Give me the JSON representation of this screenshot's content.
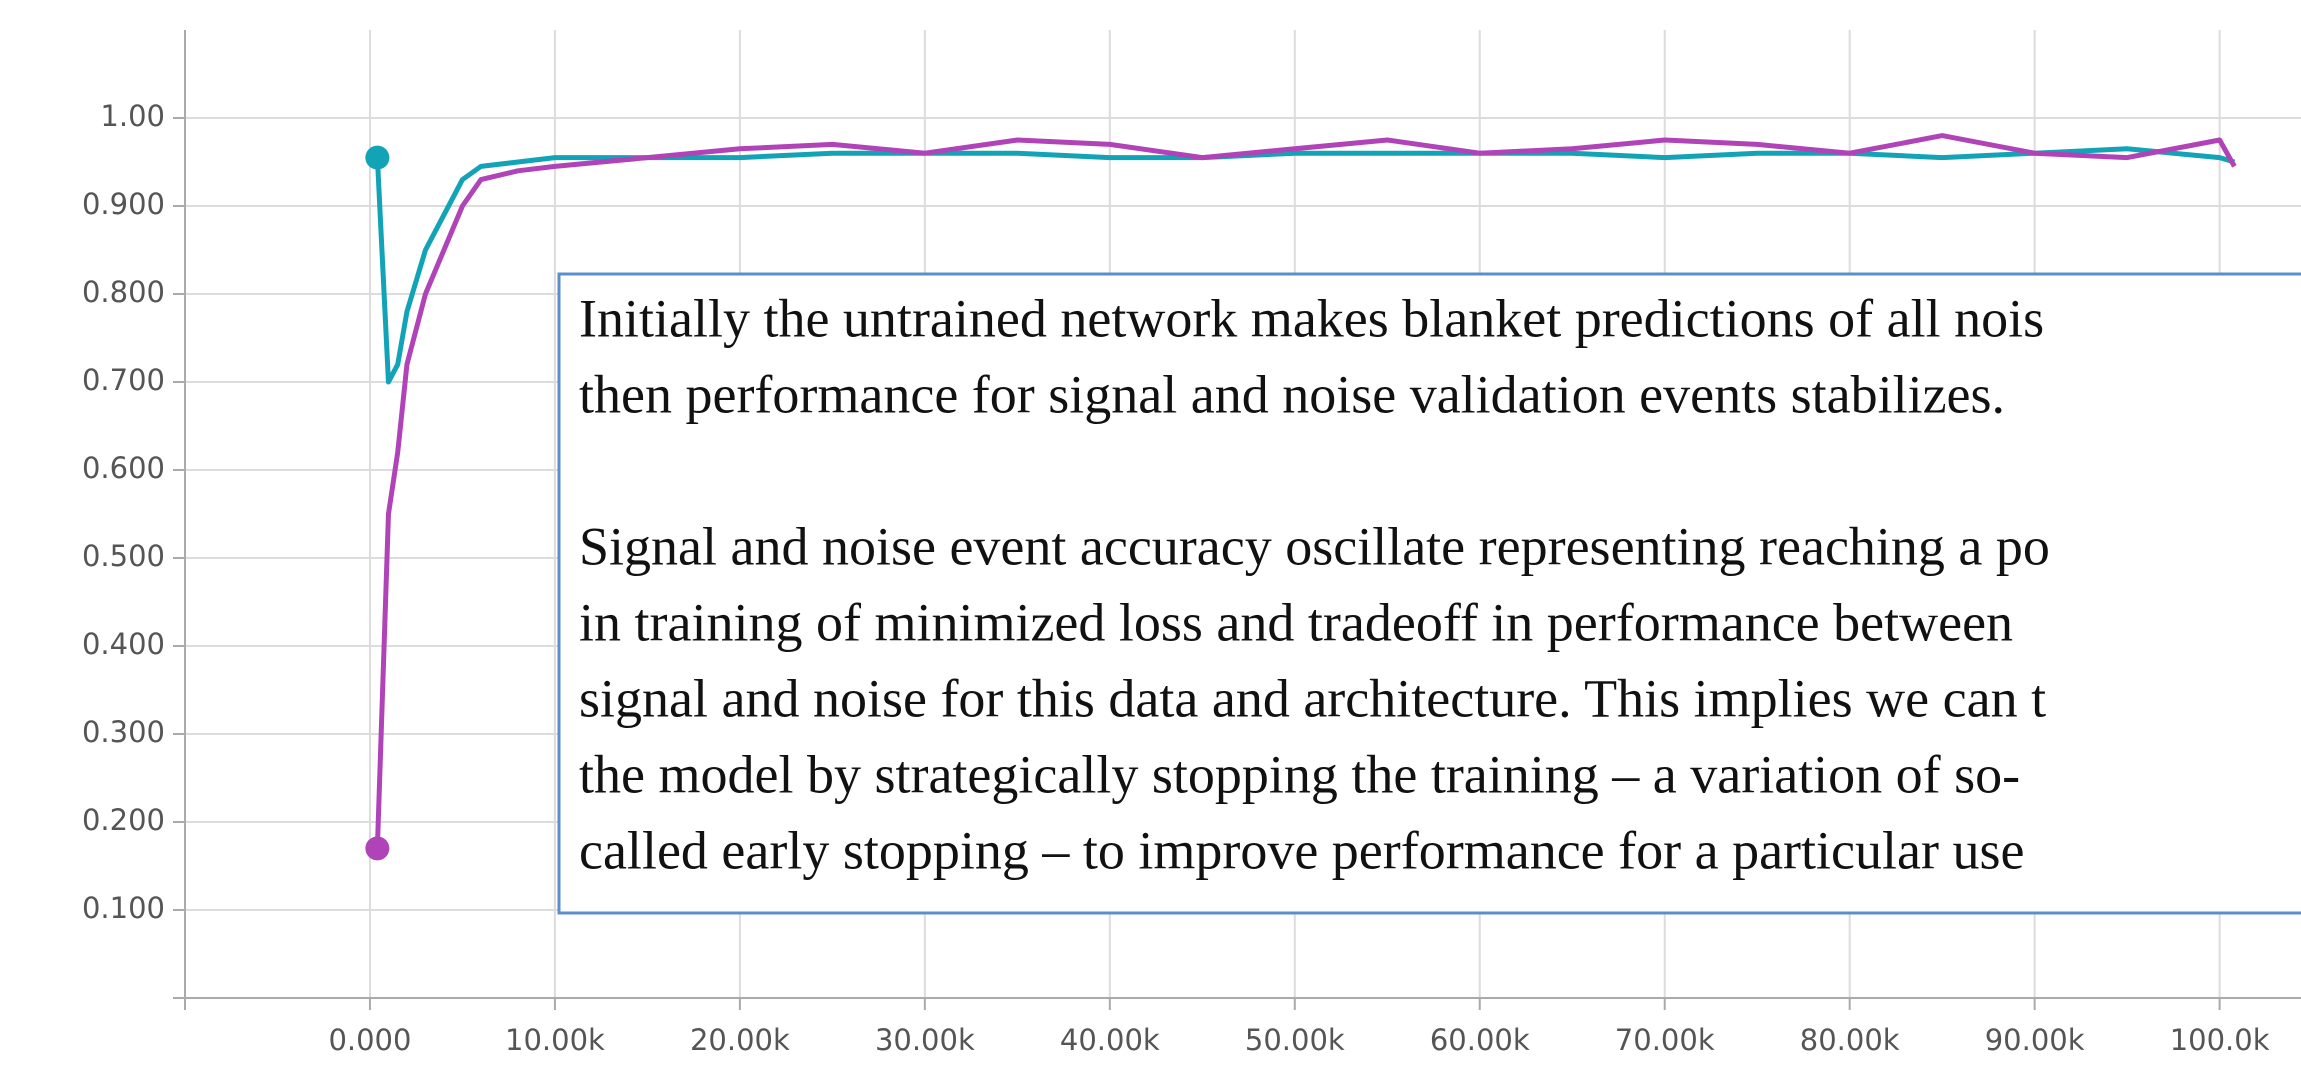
{
  "chart_data": {
    "type": "line",
    "x": [
      400,
      1000,
      1500,
      2000,
      3000,
      4000,
      5000,
      6000,
      8000,
      10000,
      15000,
      20000,
      25000,
      30000,
      35000,
      40000,
      45000,
      50000,
      55000,
      60000,
      65000,
      70000,
      75000,
      80000,
      85000,
      90000,
      95000,
      100000,
      100800
    ],
    "series": [
      {
        "color": "#12a4b6",
        "values": [
          0.955,
          0.7,
          0.72,
          0.78,
          0.85,
          0.89,
          0.93,
          0.945,
          0.95,
          0.955,
          0.955,
          0.955,
          0.96,
          0.96,
          0.96,
          0.955,
          0.955,
          0.96,
          0.96,
          0.96,
          0.96,
          0.955,
          0.96,
          0.96,
          0.955,
          0.96,
          0.965,
          0.955,
          0.95
        ]
      },
      {
        "color": "#b043b8",
        "values": [
          0.17,
          0.55,
          0.62,
          0.72,
          0.8,
          0.85,
          0.9,
          0.93,
          0.94,
          0.945,
          0.955,
          0.965,
          0.97,
          0.96,
          0.975,
          0.97,
          0.955,
          0.965,
          0.975,
          0.96,
          0.965,
          0.975,
          0.97,
          0.96,
          0.98,
          0.96,
          0.955,
          0.975,
          0.945
        ]
      }
    ],
    "xlim": [
      -10000,
      104400
    ],
    "ylim": [
      0,
      1.1
    ],
    "xticks": [
      {
        "value": 0,
        "label": "0.000"
      },
      {
        "value": 10000,
        "label": "10.00k"
      },
      {
        "value": 20000,
        "label": "20.00k"
      },
      {
        "value": 30000,
        "label": "30.00k"
      },
      {
        "value": 40000,
        "label": "40.00k"
      },
      {
        "value": 50000,
        "label": "50.00k"
      },
      {
        "value": 60000,
        "label": "60.00k"
      },
      {
        "value": 70000,
        "label": "70.00k"
      },
      {
        "value": 80000,
        "label": "80.00k"
      },
      {
        "value": 90000,
        "label": "90.00k"
      },
      {
        "value": 100000,
        "label": "100.0k"
      }
    ],
    "yticks": [
      {
        "value": 0.1,
        "label": "0.100"
      },
      {
        "value": 0.2,
        "label": "0.200"
      },
      {
        "value": 0.3,
        "label": "0.300"
      },
      {
        "value": 0.4,
        "label": "0.400"
      },
      {
        "value": 0.5,
        "label": "0.500"
      },
      {
        "value": 0.6,
        "label": "0.600"
      },
      {
        "value": 0.7,
        "label": "0.700"
      },
      {
        "value": 0.8,
        "label": "0.800"
      },
      {
        "value": 0.9,
        "label": "0.900"
      },
      {
        "value": 1,
        "label": "1.00"
      }
    ],
    "grid": true,
    "annotations": [
      [
        "Initially the untrained network makes blanket predictions of all nois",
        "then performance for signal and noise validation events stabilizes."
      ],
      [
        "Signal and noise event accuracy oscillate representing reaching a po",
        "in training of minimized loss and tradeoff in performance between",
        "signal and noise for this data and architecture. This implies we can t",
        "the model by strategically stopping the training – a variation of so-",
        "called early stopping – to improve performance for a particular use"
      ]
    ]
  }
}
